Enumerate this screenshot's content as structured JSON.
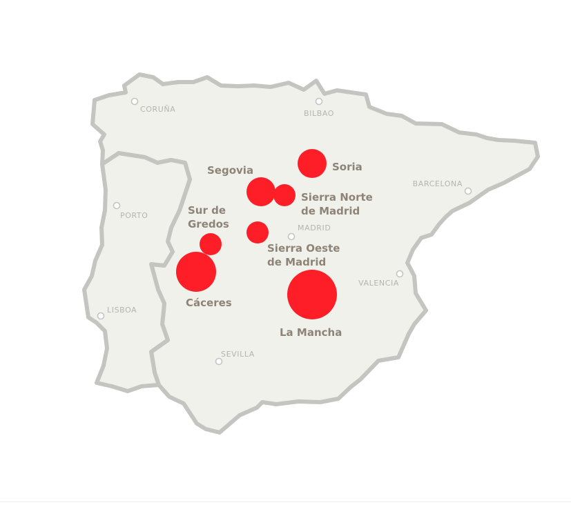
{
  "colors": {
    "land": "#f1f1ec",
    "border": "#c4c4c0",
    "city_marker": "#c4c4c0",
    "city_text": "#b4b4b0",
    "region_text": "#8d8376",
    "bubble": "#fe1e27"
  },
  "cities": [
    {
      "id": "coruna",
      "name": "CORUÑA"
    },
    {
      "id": "bilbao",
      "name": "BILBAO"
    },
    {
      "id": "barcelona",
      "name": "BARCELONA"
    },
    {
      "id": "porto",
      "name": "PORTO"
    },
    {
      "id": "madrid",
      "name": "MADRID"
    },
    {
      "id": "valencia",
      "name": "VALENCIA"
    },
    {
      "id": "lisboa",
      "name": "LISBOA"
    },
    {
      "id": "sevilla",
      "name": "SEVILLA"
    }
  ],
  "regions": [
    {
      "id": "soria",
      "lines": [
        "Soria"
      ]
    },
    {
      "id": "segovia",
      "lines": [
        "Segovia"
      ]
    },
    {
      "id": "sierra-norte",
      "lines": [
        "Sierra Norte",
        "de Madrid"
      ]
    },
    {
      "id": "sur-de-gredos",
      "lines": [
        "Sur de",
        "Gredos"
      ]
    },
    {
      "id": "sierra-oeste",
      "lines": [
        "Sierra Oeste",
        "de Madrid"
      ]
    },
    {
      "id": "caceres",
      "lines": [
        "Cáceres"
      ]
    },
    {
      "id": "la-mancha",
      "lines": [
        "La Mancha"
      ]
    }
  ]
}
